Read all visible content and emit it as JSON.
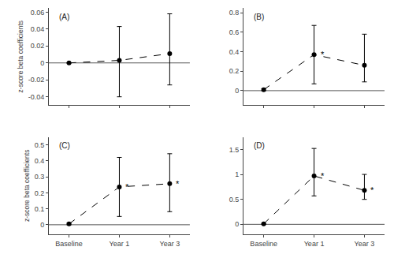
{
  "chart_data": [
    {
      "type": "line",
      "title": "(A)",
      "x": [
        0,
        1,
        2
      ],
      "series": [
        {
          "color": "black",
          "marker": "circle",
          "line_style": "dashed",
          "values": [
            0.0,
            0.003,
            0.011
          ],
          "error_low": [
            0.0,
            0.043,
            0.037
          ],
          "error_high": [
            0.0,
            0.04,
            0.047
          ]
        }
      ],
      "xlim": [
        -0.4,
        2.4
      ],
      "xticks": [
        0,
        1,
        2
      ],
      "ylim": [
        -0.05,
        0.065
      ],
      "yticks": [
        -0.04,
        -0.02,
        0.0,
        0.02,
        0.04,
        0.06
      ],
      "ylabel": "z-score beta coefficients",
      "hline": {
        "y": 0.0,
        "color": "#555555"
      },
      "annotations": [],
      "grid": false,
      "tick_labels": "y"
    },
    {
      "type": "line",
      "title": "(B)",
      "x": [
        0,
        1,
        2
      ],
      "series": [
        {
          "color": "black",
          "marker": "circle",
          "line_style": "dashed",
          "values": [
            0.01,
            0.37,
            0.26
          ],
          "error_low": [
            0.01,
            0.3,
            0.17
          ],
          "error_high": [
            0.01,
            0.3,
            0.32
          ]
        }
      ],
      "xlim": [
        -0.4,
        2.4
      ],
      "xticks": [
        0,
        1,
        2
      ],
      "ylim": [
        -0.15,
        0.85
      ],
      "yticks": [
        0.0,
        0.2,
        0.4,
        0.6,
        0.8
      ],
      "hline": {
        "y": 0.0,
        "color": "#555555"
      },
      "annotations": [
        {
          "x": 1,
          "y": 0.37,
          "text": "*"
        }
      ],
      "grid": false,
      "tick_labels": "y"
    },
    {
      "type": "line",
      "title": "(C)",
      "x": [
        0,
        1,
        2
      ],
      "series": [
        {
          "color": "black",
          "marker": "circle",
          "line_style": "dashed",
          "values": [
            0.005,
            0.237,
            0.257
          ],
          "error_low": [
            0.005,
            0.185,
            0.175
          ],
          "error_high": [
            0.005,
            0.185,
            0.188
          ]
        }
      ],
      "xlim": [
        -0.4,
        2.4
      ],
      "xticks": [
        {
          "value": 0,
          "label": "Baseline"
        },
        {
          "value": 1,
          "label": "Year 1"
        },
        {
          "value": 2,
          "label": "Year 3"
        }
      ],
      "ylim": [
        -0.06,
        0.55
      ],
      "yticks": [
        0.0,
        0.1,
        0.2,
        0.3,
        0.4,
        0.5
      ],
      "ylabel": "z-score beta coefficients",
      "hline": {
        "y": 0.0,
        "color": "#555555"
      },
      "annotations": [
        {
          "x": 1,
          "y": 0.237,
          "text": "*"
        },
        {
          "x": 2,
          "y": 0.257,
          "text": "*"
        }
      ],
      "grid": false
    },
    {
      "type": "line",
      "title": "(D)",
      "x": [
        0,
        1,
        2
      ],
      "series": [
        {
          "color": "black",
          "marker": "circle",
          "line_style": "dashed",
          "values": [
            0.01,
            0.97,
            0.68
          ],
          "error_low": [
            0.01,
            0.4,
            0.18
          ],
          "error_high": [
            0.01,
            0.55,
            0.32
          ]
        }
      ],
      "xlim": [
        -0.4,
        2.4
      ],
      "xticks": [
        {
          "value": 0,
          "label": "Baseline"
        },
        {
          "value": 1,
          "label": "Year 1"
        },
        {
          "value": 2,
          "label": "Year 3"
        }
      ],
      "ylim": [
        -0.2,
        1.75
      ],
      "yticks": [
        0.0,
        0.5,
        1.0,
        1.5
      ],
      "hline": {
        "y": 0.0,
        "color": "#555555"
      },
      "annotations": [
        {
          "x": 1,
          "y": 0.97,
          "text": "*"
        },
        {
          "x": 2,
          "y": 0.68,
          "text": "*"
        }
      ],
      "grid": false
    }
  ]
}
